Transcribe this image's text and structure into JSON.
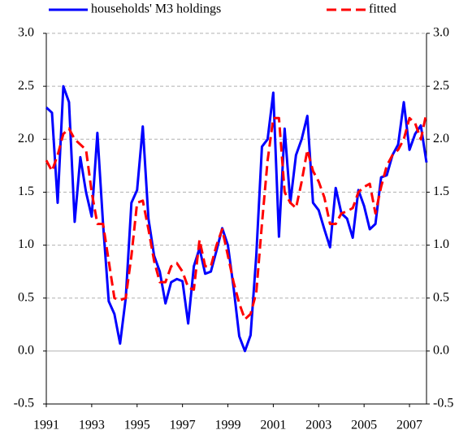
{
  "chart_data": {
    "type": "line",
    "x": [
      1991,
      1991.25,
      1991.5,
      1991.75,
      1992,
      1992.25,
      1992.5,
      1992.75,
      1993,
      1993.25,
      1993.5,
      1993.75,
      1994,
      1994.25,
      1994.5,
      1994.75,
      1995,
      1995.25,
      1995.5,
      1995.75,
      1996,
      1996.25,
      1996.5,
      1996.75,
      1997,
      1997.25,
      1997.5,
      1997.75,
      1998,
      1998.25,
      1998.5,
      1998.75,
      1999,
      1999.25,
      1999.5,
      1999.75,
      2000,
      2000.25,
      2000.5,
      2000.75,
      2001,
      2001.25,
      2001.5,
      2001.75,
      2002,
      2002.25,
      2002.5,
      2002.75,
      2003,
      2003.25,
      2003.5,
      2003.75,
      2004,
      2004.25,
      2004.5,
      2004.75,
      2005,
      2005.25,
      2005.5,
      2005.75,
      2006,
      2006.25,
      2006.5,
      2006.75,
      2007,
      2007.25,
      2007.5,
      2007.75
    ],
    "series": [
      {
        "name": "households' M3 holdings",
        "color": "#0000ff",
        "dash": false,
        "values": [
          2.3,
          2.25,
          1.4,
          2.5,
          2.35,
          1.22,
          1.83,
          1.5,
          1.27,
          2.06,
          1.2,
          0.47,
          0.35,
          0.07,
          0.5,
          1.4,
          1.52,
          2.12,
          1.25,
          0.9,
          0.75,
          0.45,
          0.65,
          0.68,
          0.66,
          0.26,
          0.8,
          0.97,
          0.73,
          0.75,
          0.95,
          1.16,
          1.0,
          0.6,
          0.14,
          0.0,
          0.15,
          0.9,
          1.93,
          2.0,
          2.44,
          1.08,
          2.1,
          1.4,
          1.85,
          2.0,
          2.22,
          1.4,
          1.33,
          1.15,
          0.98,
          1.54,
          1.3,
          1.25,
          1.07,
          1.52,
          1.37,
          1.15,
          1.2,
          1.64,
          1.66,
          1.85,
          1.95,
          2.35,
          1.9,
          2.05,
          2.13,
          1.78
        ]
      },
      {
        "name": "fitted",
        "color": "#ff0000",
        "dash": true,
        "values": [
          1.8,
          1.7,
          1.85,
          2.05,
          2.1,
          2.0,
          1.95,
          1.9,
          1.5,
          1.2,
          1.2,
          0.85,
          0.5,
          0.48,
          0.5,
          0.9,
          1.4,
          1.42,
          1.15,
          0.85,
          0.65,
          0.65,
          0.8,
          0.83,
          0.75,
          0.6,
          0.58,
          1.05,
          0.8,
          0.8,
          1.0,
          1.15,
          0.9,
          0.65,
          0.45,
          0.3,
          0.35,
          0.55,
          1.2,
          1.8,
          2.2,
          2.2,
          1.5,
          1.4,
          1.35,
          1.6,
          1.9,
          1.7,
          1.6,
          1.45,
          1.2,
          1.2,
          1.3,
          1.32,
          1.35,
          1.5,
          1.55,
          1.58,
          1.3,
          1.55,
          1.75,
          1.85,
          1.9,
          2.0,
          2.2,
          2.15,
          2.0,
          2.25
        ]
      }
    ],
    "xlim": [
      1991,
      2007.75
    ],
    "xticks": [
      1991,
      1993,
      1995,
      1997,
      1999,
      2001,
      2003,
      2005,
      2007
    ],
    "ylim": [
      -0.5,
      3.0
    ],
    "yticks": [
      {
        "value": -0.5,
        "label": "-0.5"
      },
      {
        "value": 0,
        "label": "0.0"
      },
      {
        "value": 0.5,
        "label": "0.5"
      },
      {
        "value": 1,
        "label": "1.0"
      },
      {
        "value": 1.5,
        "label": "1.5"
      },
      {
        "value": 2,
        "label": "2.0"
      },
      {
        "value": 2.5,
        "label": "2.5"
      },
      {
        "value": 3,
        "label": "3.0"
      }
    ],
    "y2lim": [
      -0.5,
      3.0
    ],
    "y2ticks": [
      {
        "value": -0.5,
        "label": "-0.5"
      },
      {
        "value": 0,
        "label": "0.0"
      },
      {
        "value": 0.5,
        "label": "0.5"
      },
      {
        "value": 1,
        "label": "1.0"
      },
      {
        "value": 1.5,
        "label": "1.5"
      },
      {
        "value": 2,
        "label": "2.0"
      },
      {
        "value": 2.5,
        "label": "2.5"
      },
      {
        "value": 3,
        "label": "3.0"
      }
    ],
    "grid": true,
    "legend": "top"
  }
}
